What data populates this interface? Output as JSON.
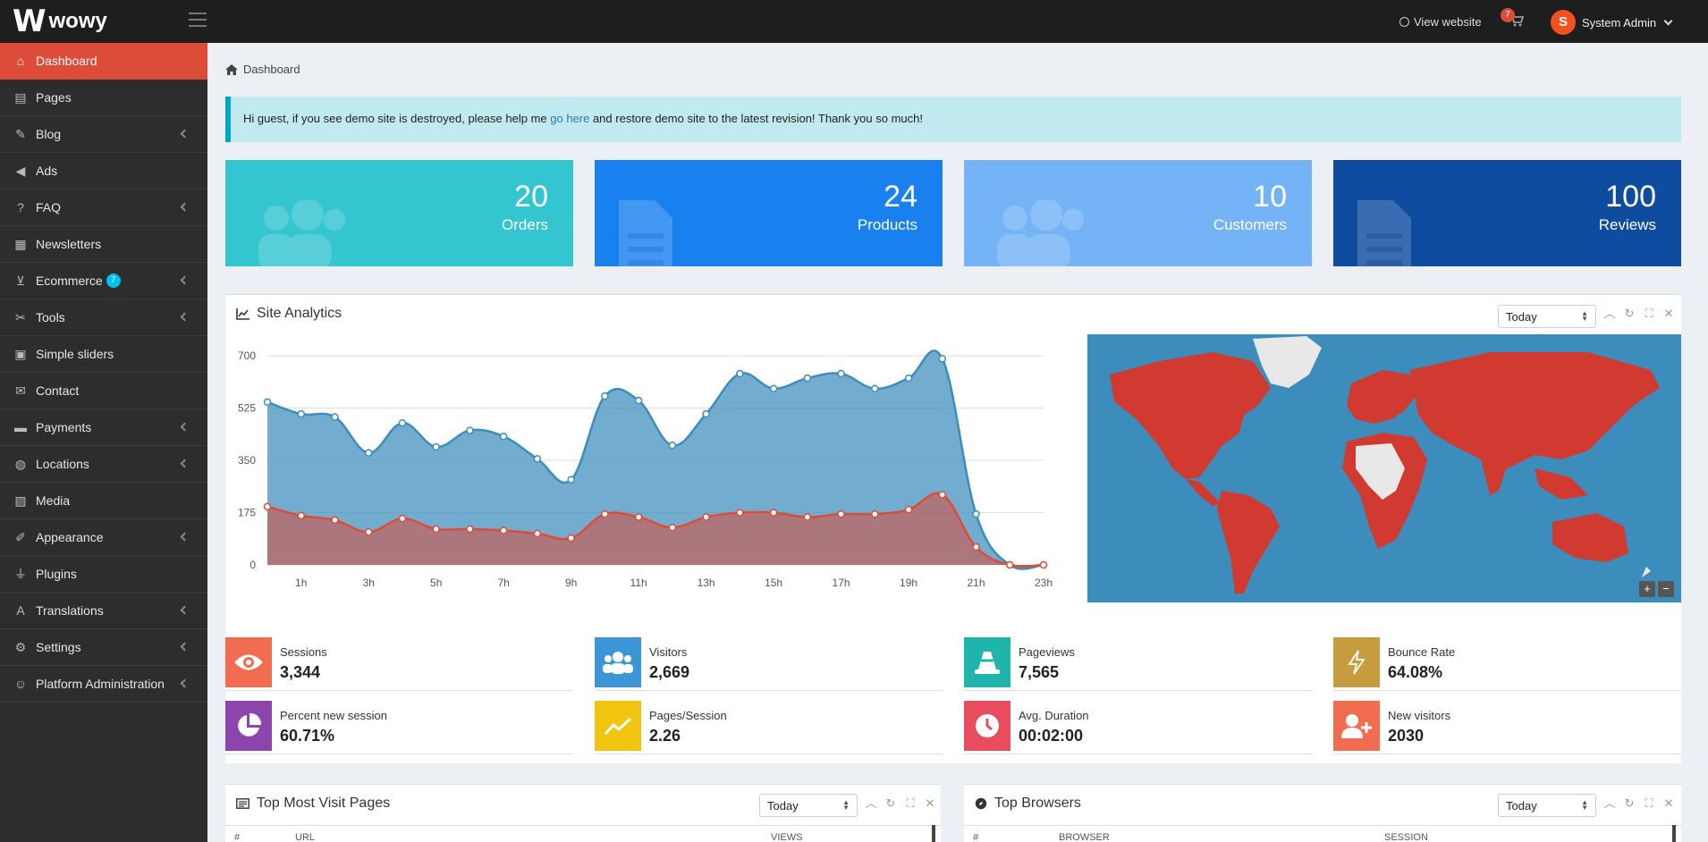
{
  "header": {
    "logo_mark": "W",
    "logo_text": "wowy",
    "view_website": "View website",
    "cart_count": "7",
    "user_initial": "S",
    "user_name": "System Admin"
  },
  "sidebar": {
    "items": [
      {
        "label": "Dashboard",
        "icon": "home-icon",
        "glyph": "⌂",
        "active": true,
        "arrow": false
      },
      {
        "label": "Pages",
        "icon": "book-icon",
        "glyph": "▤",
        "arrow": false
      },
      {
        "label": "Blog",
        "icon": "edit-icon",
        "glyph": "✎",
        "arrow": true
      },
      {
        "label": "Ads",
        "icon": "bullhorn-icon",
        "glyph": "◀",
        "arrow": false
      },
      {
        "label": "FAQ",
        "icon": "question-icon",
        "glyph": "?",
        "arrow": true
      },
      {
        "label": "Newsletters",
        "icon": "newspaper-icon",
        "glyph": "▦",
        "arrow": false
      },
      {
        "label": "Ecommerce",
        "icon": "cart-icon",
        "glyph": "⊻",
        "arrow": true,
        "badge": "7"
      },
      {
        "label": "Tools",
        "icon": "tools-icon",
        "glyph": "✂",
        "arrow": true
      },
      {
        "label": "Simple sliders",
        "icon": "image-icon",
        "glyph": "▣",
        "arrow": false
      },
      {
        "label": "Contact",
        "icon": "envelope-icon",
        "glyph": "✉",
        "arrow": false
      },
      {
        "label": "Payments",
        "icon": "credit-card-icon",
        "glyph": "▬",
        "arrow": true
      },
      {
        "label": "Locations",
        "icon": "globe-icon",
        "glyph": "◍",
        "arrow": true
      },
      {
        "label": "Media",
        "icon": "photo-icon",
        "glyph": "▨",
        "arrow": false
      },
      {
        "label": "Appearance",
        "icon": "brush-icon",
        "glyph": "✐",
        "arrow": true
      },
      {
        "label": "Plugins",
        "icon": "plug-icon",
        "glyph": "⏚",
        "arrow": false
      },
      {
        "label": "Translations",
        "icon": "language-icon",
        "glyph": "A",
        "arrow": true
      },
      {
        "label": "Settings",
        "icon": "cogs-icon",
        "glyph": "⚙",
        "arrow": true
      },
      {
        "label": "Platform Administration",
        "icon": "user-shield-icon",
        "glyph": "☺",
        "arrow": true
      }
    ]
  },
  "breadcrumb": "Dashboard",
  "alert": {
    "before": "Hi guest, if you see demo site is destroyed, please help me ",
    "link": "go here",
    "after": " and restore demo site to the latest revision! Thank you so much!"
  },
  "stats": [
    {
      "value": "20",
      "label": "Orders",
      "color": "#33c5d0",
      "icon": "users"
    },
    {
      "value": "24",
      "label": "Products",
      "color": "#1880ef",
      "icon": "file"
    },
    {
      "value": "10",
      "label": "Customers",
      "color": "#74b3f5",
      "icon": "users"
    },
    {
      "value": "100",
      "label": "Reviews",
      "color": "#0e4ca0",
      "icon": "file"
    }
  ],
  "analytics": {
    "title": "Site Analytics",
    "range": "Today"
  },
  "chart_data": {
    "type": "area",
    "x": [
      "0h",
      "1h",
      "2h",
      "3h",
      "4h",
      "5h",
      "6h",
      "7h",
      "8h",
      "9h",
      "10h",
      "11h",
      "12h",
      "13h",
      "14h",
      "15h",
      "16h",
      "17h",
      "18h",
      "19h",
      "20h",
      "21h",
      "22h",
      "23h"
    ],
    "x_tick_labels": [
      "1h",
      "3h",
      "5h",
      "7h",
      "9h",
      "11h",
      "13h",
      "15h",
      "17h",
      "19h",
      "21h",
      "23h"
    ],
    "y_tick_labels": [
      "0",
      "175",
      "350",
      "525",
      "700"
    ],
    "ylim": [
      0,
      700
    ],
    "series": [
      {
        "color": "#3c8dbc",
        "values": [
          545,
          505,
          495,
          375,
          475,
          395,
          450,
          430,
          355,
          285,
          565,
          550,
          400,
          505,
          640,
          590,
          625,
          640,
          590,
          625,
          690,
          170,
          0,
          0
        ]
      },
      {
        "color": "#dd4b39",
        "values": [
          195,
          165,
          150,
          110,
          155,
          120,
          120,
          115,
          105,
          90,
          170,
          160,
          125,
          160,
          175,
          175,
          160,
          170,
          170,
          185,
          235,
          60,
          0,
          0
        ]
      }
    ],
    "grid": true
  },
  "metrics": [
    {
      "label": "Sessions",
      "value": "3,344",
      "color": "#f26c4f",
      "icon": "eye-icon"
    },
    {
      "label": "Visitors",
      "value": "2,669",
      "color": "#3b95d6",
      "icon": "users-icon"
    },
    {
      "label": "Pageviews",
      "value": "7,565",
      "color": "#1fb5ad",
      "icon": "traffic-cone-icon"
    },
    {
      "label": "Bounce Rate",
      "value": "64.08%",
      "color": "#c69c3f",
      "icon": "bolt-icon"
    },
    {
      "label": "Percent new session",
      "value": "60.71%",
      "color": "#8e44ad",
      "icon": "pie-chart-icon"
    },
    {
      "label": "Pages/Session",
      "value": "2.26",
      "color": "#f1c40f",
      "icon": "line-chart-icon"
    },
    {
      "label": "Avg. Duration",
      "value": "00:02:00",
      "color": "#e84c5d",
      "icon": "clock-icon"
    },
    {
      "label": "New visitors",
      "value": "2030",
      "color": "#f26c4f",
      "icon": "user-plus-icon"
    }
  ],
  "top_pages": {
    "title": "Top Most Visit Pages",
    "range": "Today",
    "columns": [
      "#",
      "URL",
      "VIEWS"
    ]
  },
  "top_browsers": {
    "title": "Top Browsers",
    "range": "Today",
    "columns": [
      "#",
      "BROWSER",
      "SESSION"
    ]
  },
  "map_zoom": {
    "plus": "+",
    "minus": "−"
  }
}
